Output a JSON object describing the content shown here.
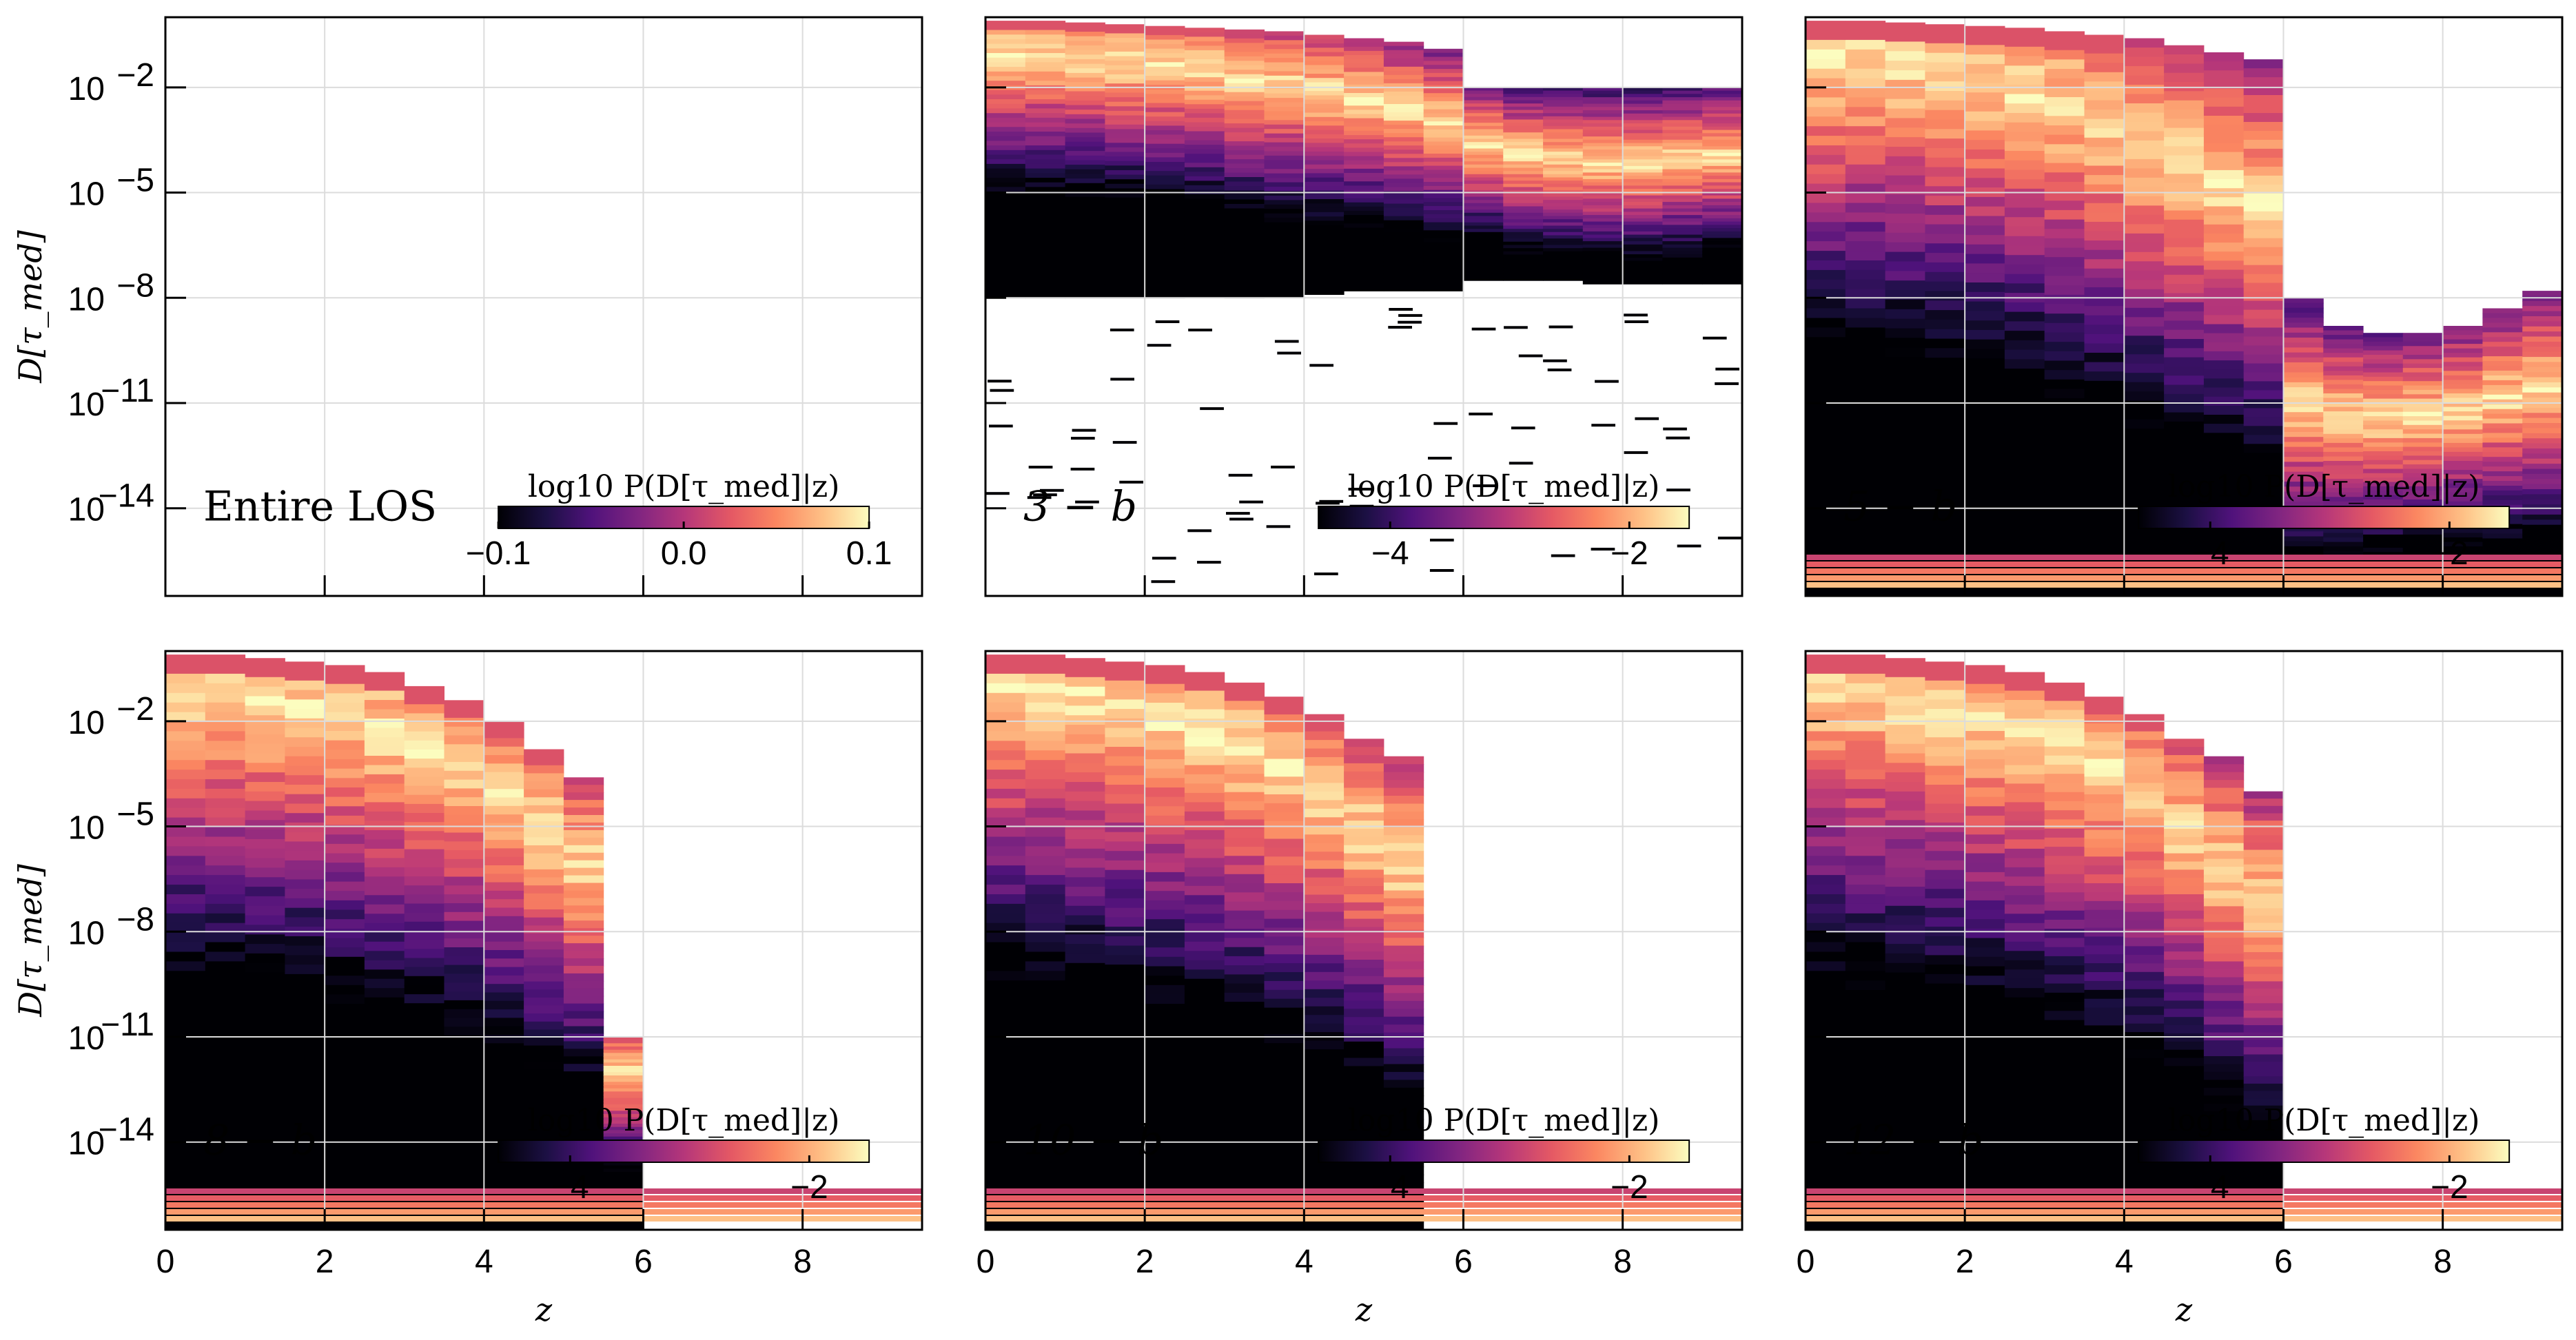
{
  "colormap": "magma",
  "colors": {
    "frame": "#000000",
    "grid": "#dcdcdc",
    "background": "#ffffff"
  },
  "chart_data": [
    {
      "type": "heatmap",
      "label": "Entire LOS",
      "xlabel": "z",
      "ylabel": "D[τ_med]",
      "xlim": [
        0,
        9.5
      ],
      "ylim_log10": [
        -16.5,
        0
      ],
      "x_ticks": [
        "0",
        "2",
        "4",
        "6",
        "8"
      ],
      "y_ticks": [
        "10^-2",
        "10^-5",
        "10^-8",
        "10^-11",
        "10^-14"
      ],
      "colorbar": {
        "label": "log10 P(D[τ_med]|z)",
        "min": -0.1,
        "max": 0.1,
        "ticks": [
          "−0.1",
          "0.0",
          "0.1"
        ]
      },
      "columns": []
    },
    {
      "type": "heatmap",
      "label": "3 − b",
      "xlabel": "z",
      "ylabel": "D[τ_med]",
      "xlim": [
        0,
        9.5
      ],
      "ylim_log10": [
        -16.5,
        0
      ],
      "x_ticks": [
        "0",
        "2",
        "4",
        "6",
        "8"
      ],
      "colorbar": {
        "label": "log10 P(D[τ_med]|z)",
        "min": -4.6,
        "max": -1.5,
        "ticks": [
          "−4",
          "−2"
        ]
      },
      "columns": [
        {
          "z": 0.25,
          "top": -0.1,
          "peak": -1.0,
          "low": -8.0
        },
        {
          "z": 0.75,
          "top": -0.1,
          "peak": -1.0,
          "low": -8.0
        },
        {
          "z": 1.25,
          "top": -0.15,
          "peak": -1.1,
          "low": -8.0
        },
        {
          "z": 1.75,
          "top": -0.2,
          "peak": -1.2,
          "low": -8.0
        },
        {
          "z": 2.25,
          "top": -0.25,
          "peak": -1.3,
          "low": -8.0
        },
        {
          "z": 2.75,
          "top": -0.3,
          "peak": -1.5,
          "low": -8.0
        },
        {
          "z": 3.25,
          "top": -0.35,
          "peak": -1.7,
          "low": -8.0
        },
        {
          "z": 3.75,
          "top": -0.4,
          "peak": -1.9,
          "low": -8.0
        },
        {
          "z": 4.25,
          "top": -0.5,
          "peak": -2.1,
          "low": -7.9
        },
        {
          "z": 4.75,
          "top": -0.6,
          "peak": -2.3,
          "low": -7.8
        },
        {
          "z": 5.25,
          "top": -0.7,
          "peak": -2.6,
          "low": -7.8
        },
        {
          "z": 5.75,
          "top": -0.9,
          "peak": -2.9,
          "low": -7.8
        },
        {
          "z": 6.25,
          "top": -2.0,
          "peak": -3.6,
          "low": -7.5
        },
        {
          "z": 6.75,
          "top": -2.0,
          "peak": -3.9,
          "low": -7.5
        },
        {
          "z": 7.25,
          "top": -2.0,
          "peak": -4.0,
          "low": -7.5
        },
        {
          "z": 7.75,
          "top": -2.0,
          "peak": -4.1,
          "low": -7.6
        },
        {
          "z": 8.25,
          "top": -2.0,
          "peak": -4.1,
          "low": -7.6
        },
        {
          "z": 8.75,
          "top": -2.0,
          "peak": -4.0,
          "low": -7.6
        },
        {
          "z": 9.25,
          "top": -2.0,
          "peak": -3.9,
          "low": -7.6
        }
      ]
    },
    {
      "type": "heatmap",
      "label": "5 − b",
      "xlabel": "z",
      "ylabel": "D[τ_med]",
      "xlim": [
        0,
        9.5
      ],
      "ylim_log10": [
        -16.5,
        0
      ],
      "x_ticks": [
        "0",
        "2",
        "4",
        "6",
        "8"
      ],
      "colorbar": {
        "label": "log10 P(D[τ_med]|z)",
        "min": -4.6,
        "max": -1.5,
        "ticks": [
          "−4",
          "−2"
        ]
      },
      "columns": [
        {
          "z": 0.25,
          "top": -0.1,
          "peak": -1.0,
          "low": -16.5
        },
        {
          "z": 0.75,
          "top": -0.1,
          "peak": -1.0,
          "low": -16.5
        },
        {
          "z": 1.25,
          "top": -0.15,
          "peak": -1.2,
          "low": -16.5
        },
        {
          "z": 1.75,
          "top": -0.2,
          "peak": -1.4,
          "low": -16.5
        },
        {
          "z": 2.25,
          "top": -0.25,
          "peak": -1.7,
          "low": -16.5
        },
        {
          "z": 2.75,
          "top": -0.3,
          "peak": -2.0,
          "low": -16.5
        },
        {
          "z": 3.25,
          "top": -0.4,
          "peak": -2.4,
          "low": -16.5
        },
        {
          "z": 3.75,
          "top": -0.5,
          "peak": -2.9,
          "low": -16.5
        },
        {
          "z": 4.25,
          "top": -0.6,
          "peak": -3.4,
          "low": -16.5
        },
        {
          "z": 4.75,
          "top": -0.8,
          "peak": -4.0,
          "low": -16.5
        },
        {
          "z": 5.25,
          "top": -1.0,
          "peak": -4.6,
          "low": -16.5
        },
        {
          "z": 5.75,
          "top": -1.2,
          "peak": -5.2,
          "low": -16.5
        },
        {
          "z": 6.25,
          "top": -8.0,
          "peak": -11.0,
          "low": -16.5
        },
        {
          "z": 6.75,
          "top": -8.8,
          "peak": -11.3,
          "low": -16.5
        },
        {
          "z": 7.25,
          "top": -9.0,
          "peak": -11.4,
          "low": -16.5
        },
        {
          "z": 7.75,
          "top": -9.0,
          "peak": -11.3,
          "low": -16.5
        },
        {
          "z": 8.25,
          "top": -8.8,
          "peak": -11.1,
          "low": -16.5
        },
        {
          "z": 8.75,
          "top": -8.3,
          "peak": -10.8,
          "low": -16.5
        },
        {
          "z": 9.25,
          "top": -7.8,
          "peak": -10.5,
          "low": -16.5
        }
      ]
    },
    {
      "type": "heatmap",
      "label": "8 − b",
      "xlabel": "z",
      "ylabel": "D[τ_med]",
      "xlim": [
        0,
        9.5
      ],
      "ylim_log10": [
        -16.5,
        0
      ],
      "x_ticks": [
        "0",
        "2",
        "4",
        "6",
        "8"
      ],
      "y_ticks": [
        "10^-2",
        "10^-5",
        "10^-8",
        "10^-11",
        "10^-14"
      ],
      "colorbar": {
        "label": "log10 P(D[τ_med]|z)",
        "min": -4.6,
        "max": -1.5,
        "ticks": [
          "−4",
          "−2"
        ]
      },
      "columns": [
        {
          "z": 0.25,
          "top": -0.1,
          "peak": -0.9,
          "low": -16.5
        },
        {
          "z": 0.75,
          "top": -0.1,
          "peak": -1.0,
          "low": -16.5
        },
        {
          "z": 1.25,
          "top": -0.2,
          "peak": -1.2,
          "low": -16.5
        },
        {
          "z": 1.75,
          "top": -0.3,
          "peak": -1.4,
          "low": -16.5
        },
        {
          "z": 2.25,
          "top": -0.4,
          "peak": -1.7,
          "low": -16.5
        },
        {
          "z": 2.75,
          "top": -0.6,
          "peak": -2.1,
          "low": -16.5
        },
        {
          "z": 3.25,
          "top": -1.0,
          "peak": -2.6,
          "low": -16.5
        },
        {
          "z": 3.75,
          "top": -1.4,
          "peak": -3.2,
          "low": -16.5
        },
        {
          "z": 4.25,
          "top": -2.0,
          "peak": -4.0,
          "low": -16.5
        },
        {
          "z": 4.75,
          "top": -2.8,
          "peak": -5.0,
          "low": -16.5
        },
        {
          "z": 5.25,
          "top": -3.6,
          "peak": -6.0,
          "low": -16.5
        },
        {
          "z": 5.75,
          "top": -11.0,
          "peak": -12.0,
          "low": -16.5
        }
      ]
    },
    {
      "type": "heatmap",
      "label": "10 − b",
      "xlabel": "z",
      "ylabel": "D[τ_med]",
      "xlim": [
        0,
        9.5
      ],
      "ylim_log10": [
        -16.5,
        0
      ],
      "x_ticks": [
        "0",
        "2",
        "4",
        "6",
        "8"
      ],
      "colorbar": {
        "label": "log10 P(D[τ_med]|z)",
        "min": -4.6,
        "max": -1.5,
        "ticks": [
          "−4",
          "−2"
        ]
      },
      "columns": [
        {
          "z": 0.25,
          "top": -0.1,
          "peak": -0.9,
          "low": -16.5
        },
        {
          "z": 0.75,
          "top": -0.1,
          "peak": -1.0,
          "low": -16.5
        },
        {
          "z": 1.25,
          "top": -0.2,
          "peak": -1.2,
          "low": -16.5
        },
        {
          "z": 1.75,
          "top": -0.3,
          "peak": -1.5,
          "low": -16.5
        },
        {
          "z": 2.25,
          "top": -0.4,
          "peak": -1.8,
          "low": -16.5
        },
        {
          "z": 2.75,
          "top": -0.6,
          "peak": -2.2,
          "low": -16.5
        },
        {
          "z": 3.25,
          "top": -0.9,
          "peak": -2.7,
          "low": -16.5
        },
        {
          "z": 3.75,
          "top": -1.3,
          "peak": -3.3,
          "low": -16.5
        },
        {
          "z": 4.25,
          "top": -1.8,
          "peak": -4.0,
          "low": -16.5
        },
        {
          "z": 4.75,
          "top": -2.5,
          "peak": -5.0,
          "low": -16.5
        },
        {
          "z": 5.25,
          "top": -3.0,
          "peak": -6.0,
          "low": -16.5
        }
      ]
    },
    {
      "type": "heatmap",
      "label": "12 − b",
      "xlabel": "z",
      "ylabel": "D[τ_med]",
      "xlim": [
        0,
        9.5
      ],
      "ylim_log10": [
        -16.5,
        0
      ],
      "x_ticks": [
        "0",
        "2",
        "4",
        "6",
        "8"
      ],
      "colorbar": {
        "label": "log10 P(D[τ_med]|z)",
        "min": -4.6,
        "max": -1.5,
        "ticks": [
          "−4",
          "−2"
        ]
      },
      "columns": [
        {
          "z": 0.25,
          "top": -0.1,
          "peak": -0.9,
          "low": -16.5
        },
        {
          "z": 0.75,
          "top": -0.1,
          "peak": -1.0,
          "low": -16.5
        },
        {
          "z": 1.25,
          "top": -0.2,
          "peak": -1.2,
          "low": -16.5
        },
        {
          "z": 1.75,
          "top": -0.3,
          "peak": -1.5,
          "low": -16.5
        },
        {
          "z": 2.25,
          "top": -0.4,
          "peak": -1.8,
          "low": -16.5
        },
        {
          "z": 2.75,
          "top": -0.6,
          "peak": -2.2,
          "low": -16.5
        },
        {
          "z": 3.25,
          "top": -0.9,
          "peak": -2.7,
          "low": -16.5
        },
        {
          "z": 3.75,
          "top": -1.3,
          "peak": -3.3,
          "low": -16.5
        },
        {
          "z": 4.25,
          "top": -1.8,
          "peak": -4.0,
          "low": -16.5
        },
        {
          "z": 4.75,
          "top": -2.5,
          "peak": -5.0,
          "low": -16.5
        },
        {
          "z": 5.25,
          "top": -3.0,
          "peak": -6.0,
          "low": -16.5
        },
        {
          "z": 5.75,
          "top": -4.0,
          "peak": -7.0,
          "low": -16.5
        }
      ]
    }
  ]
}
